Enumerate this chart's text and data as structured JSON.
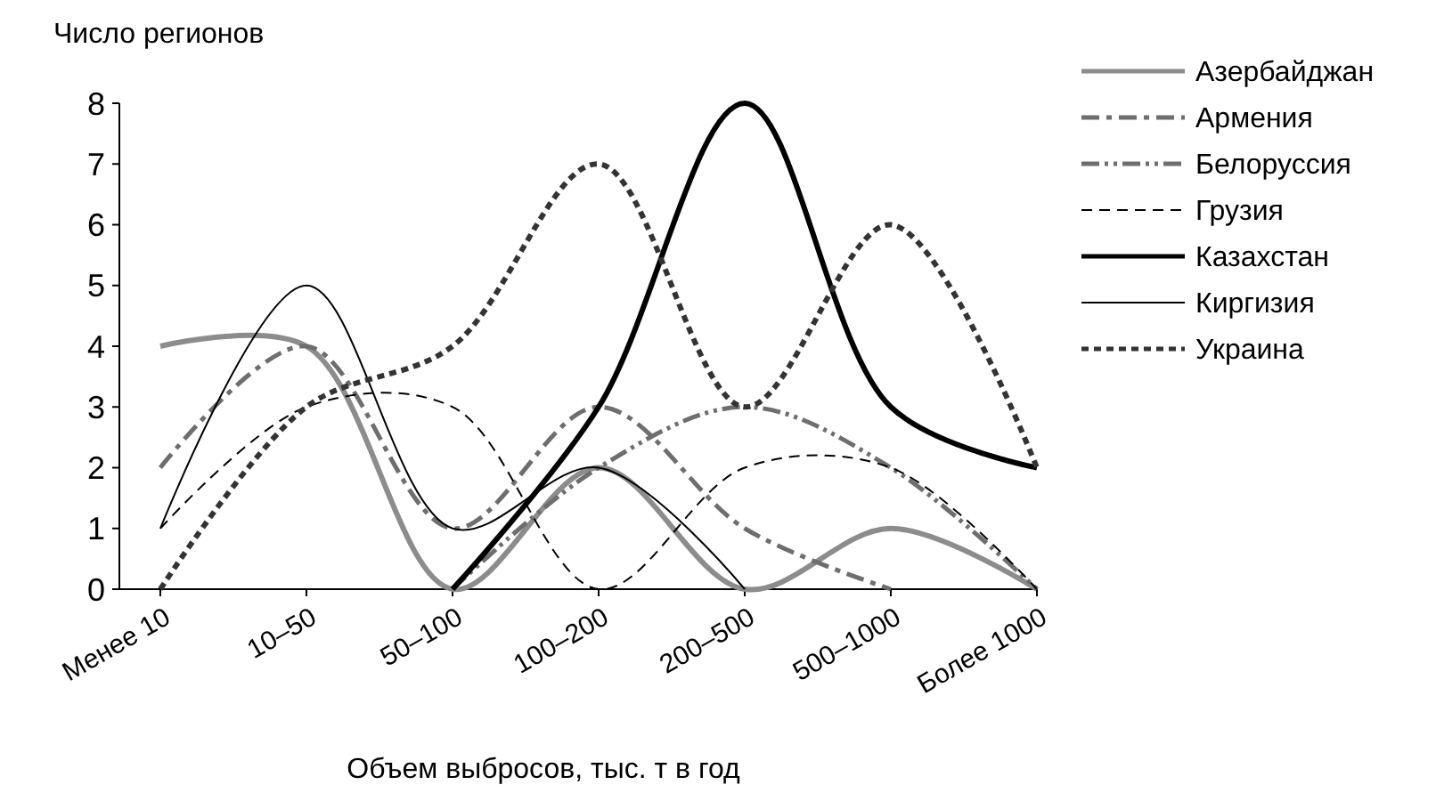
{
  "chart_data": {
    "type": "line",
    "ylabel": "Число регионов",
    "xlabel": "Объем выбросов, тыс. т в год",
    "categories": [
      "Менее 10",
      "10–50",
      "50–100",
      "100–200",
      "200–500",
      "500–1000",
      "Более 1000"
    ],
    "ylim": [
      0,
      8
    ],
    "yticks": [
      0,
      1,
      2,
      3,
      4,
      5,
      6,
      7,
      8
    ],
    "grid": false,
    "legend": "right",
    "marker": "none",
    "series": [
      {
        "name": "Азербайджан",
        "color": "#8c8c8c",
        "line_style": "solid",
        "values": [
          4,
          4,
          0,
          2,
          0,
          1,
          0
        ]
      },
      {
        "name": "Армения",
        "color": "#6e6e6e",
        "line_style": "dashdot",
        "values": [
          2,
          4,
          1,
          3,
          1,
          0,
          null
        ]
      },
      {
        "name": "Белоруссия",
        "color": "#6e6e6e",
        "line_style": "dashdotdot",
        "values": [
          null,
          null,
          0,
          2,
          3,
          2,
          0
        ]
      },
      {
        "name": "Грузия",
        "color": "#000000",
        "line_style": "dashed",
        "values": [
          1,
          3,
          3,
          0,
          2,
          2,
          0
        ]
      },
      {
        "name": "Казахстан",
        "color": "#000000",
        "line_style": "solid",
        "values": [
          null,
          null,
          0,
          3,
          8,
          3,
          2
        ]
      },
      {
        "name": "Киргизия",
        "color": "#000000",
        "line_style": "solid",
        "values": [
          1,
          5,
          1,
          2,
          0,
          null,
          null
        ]
      },
      {
        "name": "Украина",
        "color": "#333333",
        "line_style": "dotted",
        "values": [
          0,
          3,
          4,
          7,
          3,
          6,
          2
        ]
      }
    ]
  }
}
